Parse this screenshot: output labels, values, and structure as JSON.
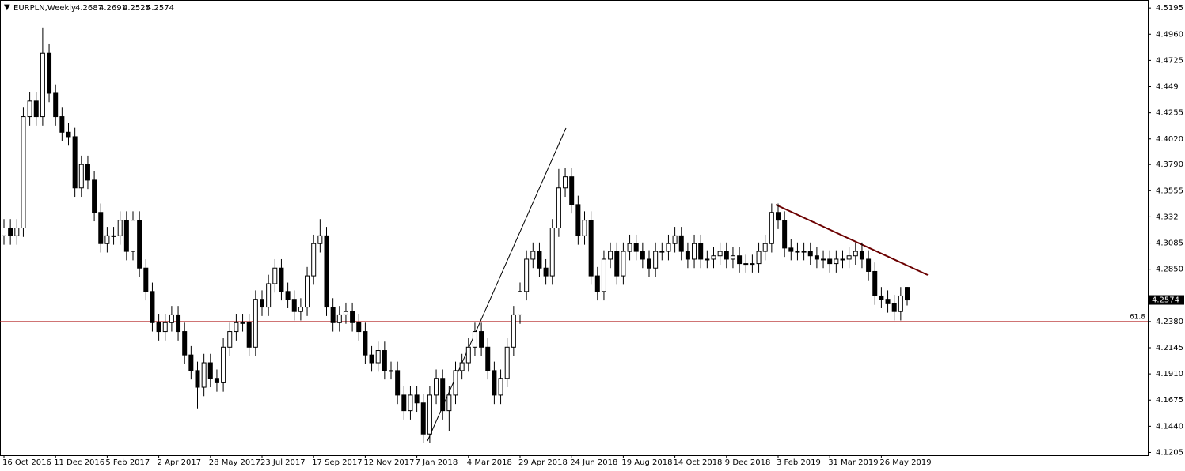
{
  "chart_data": {
    "type": "candlestick",
    "symbol": "EURPLN,Weekly",
    "x": [
      "16 Oct 2016",
      null,
      null,
      null,
      null,
      null,
      null,
      null,
      "11 Dec 2016",
      null,
      null,
      null,
      null,
      null,
      null,
      null,
      "5 Feb 2017",
      null,
      null,
      null,
      null,
      null,
      null,
      null,
      "2 Apr 2017",
      null,
      null,
      null,
      null,
      null,
      null,
      null,
      "28 May 2017",
      null,
      null,
      null,
      null,
      null,
      null,
      null,
      "23 Jul 2017",
      null,
      null,
      null,
      null,
      null,
      null,
      null,
      "17 Sep 2017",
      null,
      null,
      null,
      null,
      null,
      null,
      null,
      "12 Nov 2017",
      null,
      null,
      null,
      null,
      null,
      null,
      null,
      "7 Jan 2018",
      null,
      null,
      null,
      null,
      null,
      null,
      null,
      "4 Mar 2018",
      null,
      null,
      null,
      null,
      null,
      null,
      null,
      "29 Apr 2018",
      null,
      null,
      null,
      null,
      null,
      null,
      null,
      "24 Jun 2018",
      null,
      null,
      null,
      null,
      null,
      null,
      null,
      "19 Aug 2018",
      null,
      null,
      null,
      null,
      null,
      null,
      null,
      "14 Oct 2018",
      null,
      null,
      null,
      null,
      null,
      null,
      null,
      "9 Dec 2018",
      null,
      null,
      null,
      null,
      null,
      null,
      null,
      "3 Feb 2019",
      null,
      null,
      null,
      null,
      null,
      null,
      null,
      "31 Mar 2019",
      null,
      null,
      null,
      null,
      null,
      null,
      null,
      "26 May 2019",
      null,
      null,
      null,
      null
    ],
    "open": [
      4.315,
      4.322,
      4.315,
      4.322,
      4.422,
      4.436,
      4.422,
      4.479,
      4.443,
      4.422,
      4.408,
      4.404,
      4.358,
      4.379,
      4.365,
      4.336,
      4.308,
      4.315,
      4.315,
      4.329,
      4.301,
      4.329,
      4.286,
      4.265,
      4.237,
      4.229,
      4.237,
      4.244,
      4.229,
      4.208,
      4.194,
      4.179,
      4.201,
      4.187,
      4.183,
      4.215,
      4.229,
      4.237,
      4.237,
      4.215,
      4.258,
      4.251,
      4.272,
      4.286,
      4.265,
      4.258,
      4.247,
      4.251,
      4.279,
      4.308,
      4.315,
      4.251,
      4.237,
      4.244,
      4.247,
      4.237,
      4.229,
      4.208,
      4.201,
      4.212,
      4.194,
      4.194,
      4.172,
      4.158,
      4.172,
      4.165,
      4.137,
      4.172,
      4.187,
      4.158,
      4.172,
      4.194,
      4.201,
      4.215,
      4.229,
      4.215,
      4.194,
      4.172,
      4.187,
      4.215,
      4.244,
      4.265,
      4.294,
      4.301,
      4.286,
      4.279,
      4.322,
      4.358,
      4.368,
      4.343,
      4.315,
      4.329,
      4.279,
      4.265,
      4.294,
      4.301,
      4.279,
      4.301,
      4.308,
      4.301,
      4.294,
      4.286,
      4.301,
      4.301,
      4.308,
      4.315,
      4.301,
      4.294,
      4.308,
      4.294,
      4.294,
      4.297,
      4.301,
      4.294,
      4.297,
      4.29,
      4.29,
      4.29,
      4.301,
      4.308,
      4.336,
      4.329,
      4.304,
      4.301,
      4.301,
      4.301,
      4.297,
      4.294,
      4.294,
      4.29,
      4.294,
      4.294,
      4.297,
      4.301,
      4.294,
      4.283,
      4.261,
      4.258,
      4.254,
      4.247,
      4.2687
    ],
    "high": [
      4.33,
      4.33,
      4.33,
      4.43,
      4.444,
      4.444,
      4.502,
      4.487,
      4.451,
      4.43,
      4.416,
      4.412,
      4.387,
      4.387,
      4.373,
      4.344,
      4.323,
      4.323,
      4.337,
      4.337,
      4.337,
      4.337,
      4.294,
      4.273,
      4.245,
      4.245,
      4.252,
      4.252,
      4.237,
      4.216,
      4.202,
      4.209,
      4.209,
      4.195,
      4.223,
      4.237,
      4.245,
      4.245,
      4.245,
      4.266,
      4.266,
      4.28,
      4.294,
      4.294,
      4.273,
      4.266,
      4.259,
      4.287,
      4.316,
      4.33,
      4.323,
      4.259,
      4.252,
      4.255,
      4.255,
      4.245,
      4.237,
      4.216,
      4.22,
      4.22,
      4.202,
      4.202,
      4.18,
      4.18,
      4.18,
      4.173,
      4.18,
      4.195,
      4.195,
      4.18,
      4.202,
      4.209,
      4.223,
      4.237,
      4.237,
      4.223,
      4.202,
      4.195,
      4.223,
      4.252,
      4.273,
      4.302,
      4.309,
      4.309,
      4.294,
      4.33,
      4.375,
      4.376,
      4.376,
      4.351,
      4.337,
      4.337,
      4.287,
      4.302,
      4.309,
      4.309,
      4.309,
      4.316,
      4.316,
      4.309,
      4.302,
      4.309,
      4.309,
      4.316,
      4.323,
      4.323,
      4.309,
      4.316,
      4.316,
      4.302,
      4.305,
      4.309,
      4.309,
      4.305,
      4.305,
      4.298,
      4.298,
      4.309,
      4.316,
      4.344,
      4.344,
      4.337,
      4.312,
      4.309,
      4.309,
      4.309,
      4.305,
      4.302,
      4.302,
      4.302,
      4.302,
      4.305,
      4.309,
      4.309,
      4.302,
      4.291,
      4.269,
      4.266,
      4.262,
      4.269,
      4.2691
    ],
    "low": [
      4.307,
      4.307,
      4.307,
      4.314,
      4.414,
      4.414,
      4.414,
      4.435,
      4.414,
      4.4,
      4.396,
      4.35,
      4.35,
      4.357,
      4.328,
      4.3,
      4.3,
      4.307,
      4.307,
      4.293,
      4.293,
      4.278,
      4.257,
      4.229,
      4.221,
      4.221,
      4.229,
      4.221,
      4.2,
      4.186,
      4.16,
      4.171,
      4.179,
      4.175,
      4.175,
      4.207,
      4.221,
      4.229,
      4.207,
      4.207,
      4.243,
      4.243,
      4.264,
      4.257,
      4.25,
      4.239,
      4.239,
      4.243,
      4.271,
      4.3,
      4.243,
      4.229,
      4.229,
      4.236,
      4.229,
      4.221,
      4.2,
      4.193,
      4.193,
      4.186,
      4.186,
      4.164,
      4.15,
      4.15,
      4.157,
      4.129,
      4.129,
      4.164,
      4.15,
      4.14,
      4.164,
      4.186,
      4.193,
      4.207,
      4.207,
      4.186,
      4.164,
      4.164,
      4.179,
      4.207,
      4.236,
      4.257,
      4.286,
      4.278,
      4.271,
      4.271,
      4.314,
      4.35,
      4.335,
      4.307,
      4.307,
      4.271,
      4.257,
      4.257,
      4.286,
      4.271,
      4.271,
      4.293,
      4.293,
      4.286,
      4.278,
      4.278,
      4.293,
      4.293,
      4.3,
      4.293,
      4.286,
      4.286,
      4.286,
      4.286,
      4.286,
      4.289,
      4.286,
      4.286,
      4.282,
      4.282,
      4.282,
      4.282,
      4.293,
      4.3,
      4.321,
      4.296,
      4.293,
      4.293,
      4.293,
      4.289,
      4.286,
      4.286,
      4.282,
      4.282,
      4.286,
      4.286,
      4.289,
      4.286,
      4.275,
      4.253,
      4.25,
      4.246,
      4.239,
      4.239,
      4.2525
    ],
    "close": [
      4.322,
      4.315,
      4.322,
      4.422,
      4.436,
      4.422,
      4.479,
      4.443,
      4.422,
      4.408,
      4.404,
      4.358,
      4.379,
      4.365,
      4.336,
      4.308,
      4.315,
      4.315,
      4.329,
      4.301,
      4.329,
      4.286,
      4.265,
      4.237,
      4.229,
      4.237,
      4.244,
      4.229,
      4.208,
      4.194,
      4.179,
      4.201,
      4.187,
      4.183,
      4.215,
      4.229,
      4.237,
      4.237,
      4.215,
      4.258,
      4.251,
      4.272,
      4.286,
      4.265,
      4.258,
      4.247,
      4.251,
      4.279,
      4.308,
      4.315,
      4.251,
      4.237,
      4.244,
      4.247,
      4.237,
      4.229,
      4.208,
      4.201,
      4.212,
      4.194,
      4.194,
      4.172,
      4.158,
      4.172,
      4.165,
      4.137,
      4.172,
      4.187,
      4.158,
      4.172,
      4.194,
      4.201,
      4.215,
      4.229,
      4.215,
      4.194,
      4.172,
      4.187,
      4.215,
      4.244,
      4.265,
      4.294,
      4.301,
      4.286,
      4.279,
      4.322,
      4.358,
      4.368,
      4.343,
      4.315,
      4.329,
      4.279,
      4.265,
      4.294,
      4.301,
      4.279,
      4.301,
      4.308,
      4.301,
      4.294,
      4.286,
      4.301,
      4.301,
      4.308,
      4.315,
      4.301,
      4.294,
      4.308,
      4.294,
      4.294,
      4.297,
      4.301,
      4.294,
      4.297,
      4.29,
      4.29,
      4.29,
      4.301,
      4.308,
      4.336,
      4.329,
      4.304,
      4.301,
      4.301,
      4.301,
      4.297,
      4.294,
      4.294,
      4.29,
      4.294,
      4.294,
      4.297,
      4.301,
      4.294,
      4.283,
      4.261,
      4.258,
      4.254,
      4.247,
      4.261,
      4.2574
    ],
    "ylim": [
      4.118,
      4.526
    ],
    "yticks": [
      4.5195,
      {
        "value": 4.496,
        "label": "4.4960"
      },
      4.4725,
      4.449,
      4.4255,
      {
        "value": 4.402,
        "label": "4.4020"
      },
      {
        "value": 4.379,
        "label": "4.3790"
      },
      4.3555,
      4.332,
      4.3085,
      {
        "value": 4.285,
        "label": "4.2850"
      },
      {
        "value": 4.238,
        "label": "4.2380"
      },
      4.2145,
      {
        "value": 4.191,
        "label": "4.1910"
      },
      4.1675,
      {
        "value": 4.144,
        "label": "4.1440"
      },
      4.1205
    ],
    "levels": [
      {
        "label": "61.8",
        "value": 4.238,
        "color": "#b22222"
      }
    ],
    "bull_color": "#ffffff",
    "bear_color": "#000000"
  }
}
